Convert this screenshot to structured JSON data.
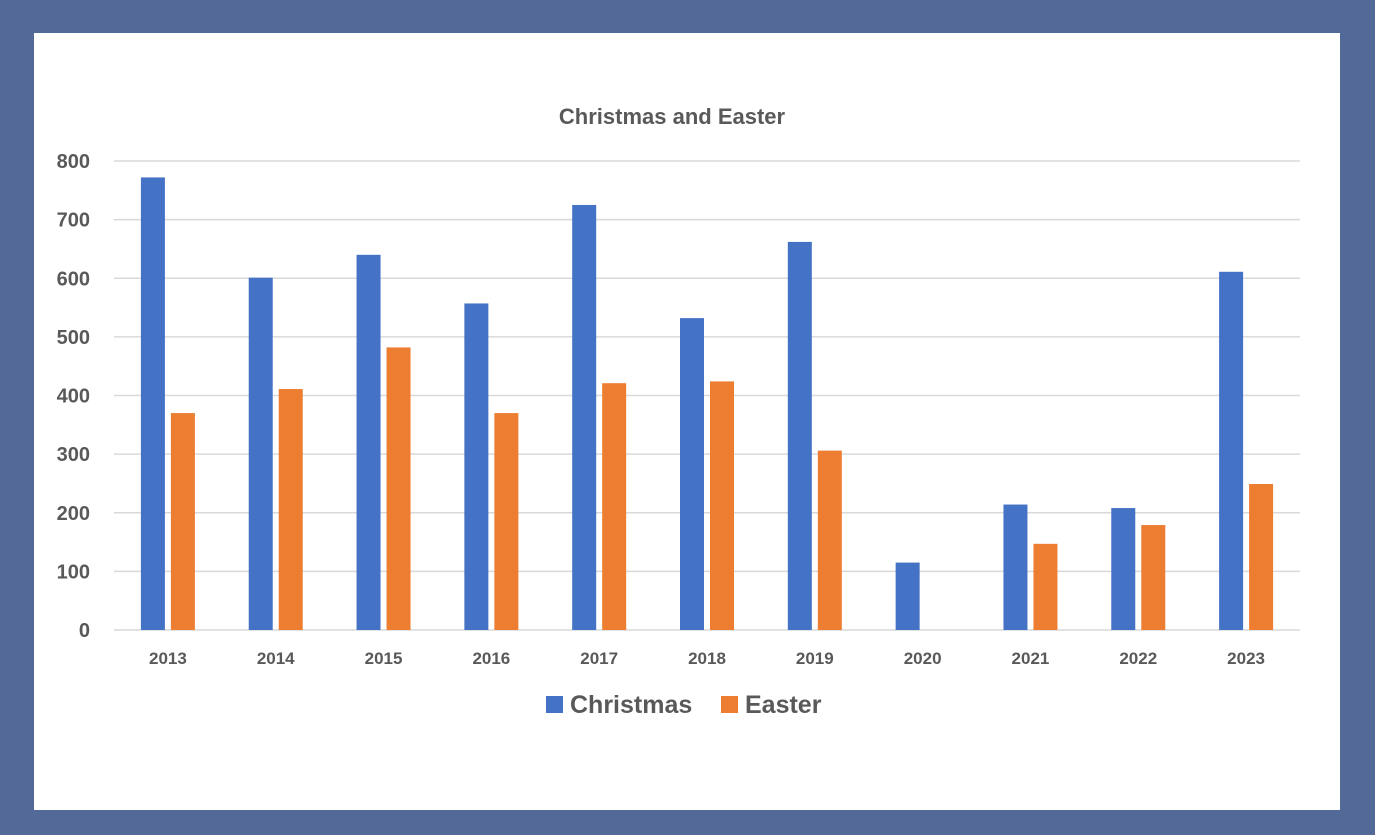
{
  "colors": {
    "frame": "#536a99",
    "christmas": "#4472c4",
    "easter": "#ed7d31",
    "grid": "#d9d9d9",
    "text": "#595959"
  },
  "chart_data": {
    "type": "bar",
    "title": "Christmas and Easter",
    "xlabel": "",
    "ylabel": "",
    "categories": [
      "2013",
      "2014",
      "2015",
      "2016",
      "2017",
      "2018",
      "2019",
      "2020",
      "2021",
      "2022",
      "2023"
    ],
    "series": [
      {
        "name": "Christmas",
        "color": "#4472c4",
        "values": [
          772,
          601,
          640,
          557,
          725,
          532,
          662,
          115,
          214,
          208,
          611
        ]
      },
      {
        "name": "Easter",
        "color": "#ed7d31",
        "values": [
          370,
          411,
          482,
          370,
          421,
          424,
          306,
          0,
          147,
          179,
          249
        ]
      }
    ],
    "ylim": [
      0,
      800
    ],
    "yticks": [
      "0",
      "100",
      "200",
      "300",
      "400",
      "500",
      "600",
      "700",
      "800"
    ],
    "grid": true,
    "legend_position": "bottom"
  }
}
